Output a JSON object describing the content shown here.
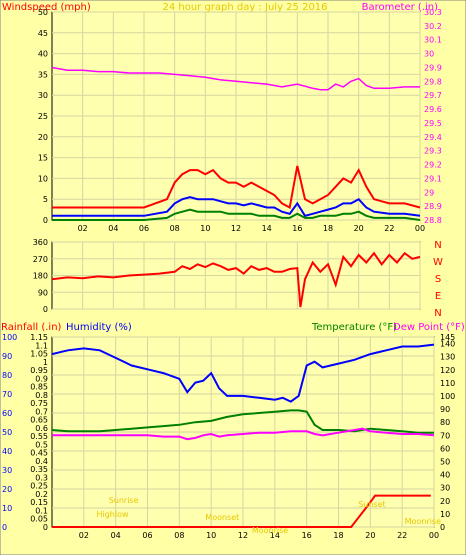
{
  "chart_data": [
    {
      "type": "line",
      "left_label": "Windspeed (mph)",
      "title": "24 hour graph day : July 25 2016",
      "right_label": "Barometer (.in)",
      "left_ticks": [
        "0",
        "5",
        "10",
        "15",
        "20",
        "25",
        "30",
        "35",
        "40",
        "45",
        "50"
      ],
      "left_range": [
        0,
        50
      ],
      "right_ticks": [
        "28.8",
        "28.9",
        "29",
        "29.1",
        "29.2",
        "29.3",
        "29.4",
        "29.5",
        "29.6",
        "29.7",
        "29.8",
        "29.9",
        "30",
        "30.1",
        "30.2",
        "30.3"
      ],
      "right_range": [
        28.8,
        30.3
      ],
      "x_ticks": [
        "02",
        "04",
        "06",
        "08",
        "10",
        "12",
        "14",
        "16",
        "18",
        "20",
        "22",
        "00"
      ],
      "x_range": [
        0,
        24
      ],
      "grid": true,
      "colors": {
        "left_label": "#FF0000",
        "title": "#E6C800",
        "right_label": "#FF00FF"
      },
      "series": [
        {
          "color": "#FF00FF",
          "axis": "right",
          "x": [
            0,
            1,
            2,
            3,
            4,
            5,
            6,
            7,
            8,
            9,
            10,
            11,
            12,
            13,
            14,
            14.5,
            15,
            16,
            17,
            17.5,
            18,
            18.5,
            19,
            19.5,
            20,
            20.5,
            21,
            22,
            23,
            24
          ],
          "y": [
            29.9,
            29.88,
            29.88,
            29.87,
            29.87,
            29.86,
            29.86,
            29.86,
            29.85,
            29.84,
            29.83,
            29.81,
            29.8,
            29.79,
            29.78,
            29.77,
            29.76,
            29.78,
            29.75,
            29.74,
            29.74,
            29.78,
            29.76,
            29.8,
            29.82,
            29.77,
            29.75,
            29.75,
            29.76,
            29.76
          ]
        },
        {
          "color": "#FF0000",
          "axis": "left",
          "x": [
            0,
            2,
            4,
            6,
            7.5,
            8,
            8.5,
            9,
            9.5,
            10,
            10.5,
            11,
            11.5,
            12,
            12.5,
            13,
            13.5,
            14,
            14.5,
            15,
            15.5,
            16,
            16.5,
            17,
            17.5,
            18,
            18.5,
            19,
            19.5,
            20,
            20.5,
            21,
            22,
            23,
            24
          ],
          "y": [
            3,
            3,
            3,
            3,
            5,
            9,
            11,
            12,
            12,
            11,
            12,
            10,
            9,
            9,
            8,
            9,
            8,
            7,
            6,
            4,
            3,
            13,
            5,
            4,
            5,
            6,
            8,
            10,
            9,
            12,
            8,
            5,
            4,
            4,
            3
          ]
        },
        {
          "color": "#0000FF",
          "axis": "left",
          "x": [
            0,
            2,
            4,
            6,
            7.5,
            8,
            8.5,
            9,
            9.5,
            10,
            10.5,
            11,
            11.5,
            12,
            12.5,
            13,
            13.5,
            14,
            14.5,
            15,
            15.5,
            16,
            16.5,
            17,
            17.5,
            18,
            18.5,
            19,
            19.5,
            20,
            20.5,
            21,
            22,
            23,
            24
          ],
          "y": [
            1,
            1,
            1,
            1,
            2,
            4,
            5,
            5.5,
            5,
            5,
            5,
            4.5,
            4,
            4,
            3.5,
            4,
            3.5,
            3,
            3,
            2,
            1.5,
            4,
            1,
            1.5,
            2,
            2.5,
            3,
            4,
            4,
            5,
            3,
            2,
            1.5,
            1.5,
            1
          ]
        },
        {
          "color": "#008000",
          "axis": "left",
          "x": [
            0,
            2,
            4,
            6,
            7.5,
            8,
            8.5,
            9,
            9.5,
            10,
            10.5,
            11,
            11.5,
            12,
            12.5,
            13,
            13.5,
            14,
            14.5,
            15,
            15.5,
            16,
            16.5,
            17,
            17.5,
            18,
            18.5,
            19,
            19.5,
            20,
            20.5,
            21,
            22,
            23,
            24
          ],
          "y": [
            0,
            0,
            0,
            0,
            0.5,
            1.5,
            2,
            2.5,
            2,
            2,
            2,
            2,
            1.5,
            1.5,
            1.5,
            1.5,
            1,
            1,
            1,
            0.5,
            0.5,
            1.5,
            0.5,
            0.5,
            1,
            1,
            1,
            1.5,
            1.5,
            2,
            1,
            0.5,
            0.5,
            0.5,
            0
          ]
        }
      ]
    },
    {
      "type": "line",
      "left_ticks": [
        "0",
        "90",
        "180",
        "270",
        "360"
      ],
      "left_range": [
        0,
        360
      ],
      "right_ticks": [
        "N",
        "W",
        "S",
        "E",
        "N"
      ],
      "x_ticks": [
        "02",
        "04",
        "06",
        "08",
        "10",
        "12",
        "14",
        "16",
        "18",
        "20",
        "22",
        "00"
      ],
      "x_range": [
        0,
        24
      ],
      "grid": true,
      "colors": {
        "right_ticks": "#FF0000"
      },
      "series": [
        {
          "color": "#FF0000",
          "x": [
            0,
            1,
            2,
            3,
            4,
            5,
            6,
            7,
            8,
            8.5,
            9,
            9.5,
            10,
            10.5,
            11,
            11.5,
            12,
            12.5,
            13,
            13.5,
            14,
            14.5,
            15,
            15.5,
            16,
            16.2,
            16.5,
            17,
            17.5,
            18,
            18.5,
            19,
            19.5,
            20,
            20.5,
            21,
            21.5,
            22,
            22.5,
            23,
            23.5,
            24
          ],
          "y": [
            160,
            170,
            165,
            175,
            170,
            180,
            185,
            190,
            200,
            230,
            215,
            240,
            225,
            245,
            230,
            210,
            220,
            190,
            230,
            210,
            220,
            200,
            200,
            215,
            220,
            10,
            160,
            250,
            200,
            240,
            130,
            280,
            230,
            290,
            250,
            300,
            240,
            290,
            250,
            300,
            270,
            280
          ]
        }
      ]
    },
    {
      "type": "line",
      "left_label_1": "Rainfall (.in)",
      "left_label_2": "Humidity (%)",
      "right_label_1": "Temperature (°F)",
      "right_label_2": "Dew Point (°F)",
      "humidity_ticks": [
        "0",
        "10",
        "20",
        "30",
        "40",
        "50",
        "60",
        "70",
        "80",
        "90",
        "100"
      ],
      "humidity_range": [
        0,
        100
      ],
      "rain_ticks": [
        "0",
        "0.05",
        "0.1",
        "0.15",
        "0.2",
        "0.25",
        "0.3",
        "0.35",
        "0.4",
        "0.45",
        "0.5",
        "0.55",
        "0.6",
        "0.65",
        "0.7",
        "0.75",
        "0.8",
        "0.85",
        "0.9",
        "0.95",
        "1",
        "1.05",
        "1.1",
        "1.15"
      ],
      "rain_range": [
        0,
        1.15
      ],
      "temp_ticks": [
        "0",
        "5",
        "10",
        "15",
        "20",
        "25",
        "30",
        "35",
        "40",
        "45",
        "50",
        "55",
        "60",
        "65",
        "70",
        "75",
        "80",
        "85",
        "90",
        "95",
        "100",
        "105",
        "110",
        "115",
        "120",
        "125",
        "130",
        "135",
        "140",
        "145"
      ],
      "temp_range": [
        0,
        145
      ],
      "x_ticks": [
        "02",
        "04",
        "06",
        "08",
        "10",
        "12",
        "14",
        "16",
        "18",
        "20",
        "22",
        "00"
      ],
      "x_range": [
        0,
        24
      ],
      "grid": true,
      "colors": {
        "rain": "#FF0000",
        "humidity": "#0000FF",
        "temperature": "#008000",
        "dewpoint": "#FF00FF",
        "sun": "#E6C800"
      },
      "series": [
        {
          "color": "#0000FF",
          "axis": "humidity",
          "x": [
            0,
            0.5,
            1,
            2,
            3,
            4,
            5,
            6,
            7,
            8,
            8.5,
            9,
            9.5,
            10,
            10.5,
            11,
            12,
            13,
            14,
            14.5,
            15,
            15.5,
            16,
            16.5,
            17,
            17.5,
            18,
            19,
            20,
            21,
            22,
            23,
            24
          ],
          "y": [
            91,
            92,
            93,
            94,
            93,
            89,
            85,
            83,
            81,
            78,
            71,
            76,
            77,
            81,
            73,
            69,
            69,
            68,
            67,
            68,
            66,
            69,
            85,
            87,
            84,
            85,
            86,
            88,
            91,
            93,
            95,
            95,
            96
          ]
        },
        {
          "color": "#008000",
          "axis": "temperature",
          "x": [
            0,
            1,
            2,
            3,
            4,
            5,
            6,
            7,
            8,
            9,
            10,
            11,
            12,
            13,
            14,
            15,
            15.5,
            16,
            16.5,
            17,
            18,
            19,
            20,
            21,
            22,
            23,
            24
          ],
          "y": [
            74,
            73,
            73,
            73,
            74,
            75,
            76,
            77,
            78,
            80,
            81,
            84,
            86,
            87,
            88,
            89,
            89,
            88,
            78,
            74,
            74,
            73,
            75,
            74,
            73,
            72,
            72
          ]
        },
        {
          "color": "#FF00FF",
          "axis": "temperature",
          "x": [
            0,
            1,
            2,
            3,
            4,
            5,
            6,
            7,
            8,
            8.5,
            9,
            9.5,
            10,
            10.5,
            11,
            12,
            13,
            14,
            15,
            16,
            16.5,
            17,
            18,
            19,
            19.5,
            20,
            21,
            22,
            23,
            24
          ],
          "y": [
            70,
            70,
            70,
            70,
            70,
            70,
            70,
            69,
            69,
            67,
            68,
            70,
            71,
            69,
            70,
            71,
            72,
            72,
            73,
            73,
            71,
            70,
            72,
            74,
            75,
            73,
            72,
            71,
            71,
            70
          ],
          "axis_note": "right"
        },
        {
          "color": "#FF0000",
          "axis": "rain",
          "x": [
            0,
            18.8,
            19.2,
            19.6,
            20.0,
            20.3,
            22.5,
            23.8
          ],
          "y": [
            0,
            0,
            0.05,
            0.1,
            0.15,
            0.19,
            0.19,
            0.19
          ]
        }
      ],
      "annotations": [
        {
          "text": "Sunrise",
          "x": 4.5,
          "color": "#E6C800"
        },
        {
          "text": "Highlow",
          "x": 3.8,
          "color": "#E6C800"
        },
        {
          "text": "Moonset",
          "x": 10.7,
          "color": "#E6C800"
        },
        {
          "text": "Moonrise",
          "x": 13.7,
          "color": "#E6C800"
        },
        {
          "text": "Sunset",
          "x": 20.1,
          "color": "#E6C800"
        },
        {
          "text": "Moonrise",
          "x": 23.3,
          "color": "#E6C800"
        }
      ]
    }
  ]
}
